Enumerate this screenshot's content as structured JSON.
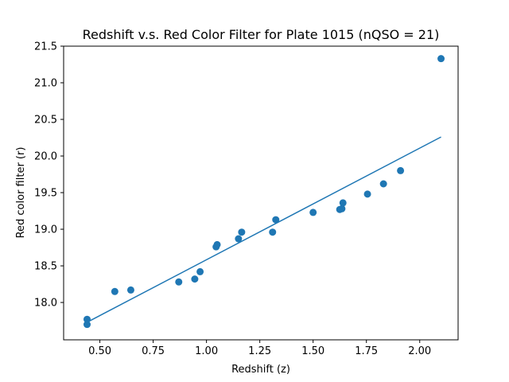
{
  "chart_data": {
    "type": "scatter",
    "title": "Redshift v.s. Red Color Filter for Plate 1015 (nQSO = 21)",
    "xlabel": "Redshift (z)",
    "ylabel": "Red color filter (r)",
    "xlim": [
      0.33,
      2.18
    ],
    "ylim": [
      17.49,
      21.5
    ],
    "xticks": [
      "0.50",
      "0.75",
      "1.00",
      "1.25",
      "1.50",
      "1.75",
      "2.00"
    ],
    "xtick_values": [
      0.5,
      0.75,
      1.0,
      1.25,
      1.5,
      1.75,
      2.0
    ],
    "yticks": [
      "18.0",
      "18.5",
      "19.0",
      "19.5",
      "20.0",
      "20.5",
      "21.0",
      "21.5"
    ],
    "ytick_values": [
      18.0,
      18.5,
      19.0,
      19.5,
      20.0,
      20.5,
      21.0,
      21.5
    ],
    "grid": false,
    "legend": "none",
    "color": "#1f77b4",
    "points": [
      {
        "x": 0.44,
        "y": 17.7
      },
      {
        "x": 0.44,
        "y": 17.77
      },
      {
        "x": 0.57,
        "y": 18.15
      },
      {
        "x": 0.645,
        "y": 18.17
      },
      {
        "x": 0.87,
        "y": 18.28
      },
      {
        "x": 0.945,
        "y": 18.32
      },
      {
        "x": 0.97,
        "y": 18.42
      },
      {
        "x": 1.045,
        "y": 18.76
      },
      {
        "x": 1.05,
        "y": 18.79
      },
      {
        "x": 1.15,
        "y": 18.87
      },
      {
        "x": 1.165,
        "y": 18.96
      },
      {
        "x": 1.31,
        "y": 18.96
      },
      {
        "x": 1.325,
        "y": 19.13
      },
      {
        "x": 1.5,
        "y": 19.23
      },
      {
        "x": 1.625,
        "y": 19.27
      },
      {
        "x": 1.635,
        "y": 19.28
      },
      {
        "x": 1.64,
        "y": 19.36
      },
      {
        "x": 1.755,
        "y": 19.48
      },
      {
        "x": 1.83,
        "y": 19.62
      },
      {
        "x": 1.91,
        "y": 19.8
      },
      {
        "x": 2.1,
        "y": 21.33
      }
    ],
    "fit_line": [
      {
        "x": 0.44,
        "y": 17.73
      },
      {
        "x": 2.1,
        "y": 20.26
      }
    ]
  }
}
